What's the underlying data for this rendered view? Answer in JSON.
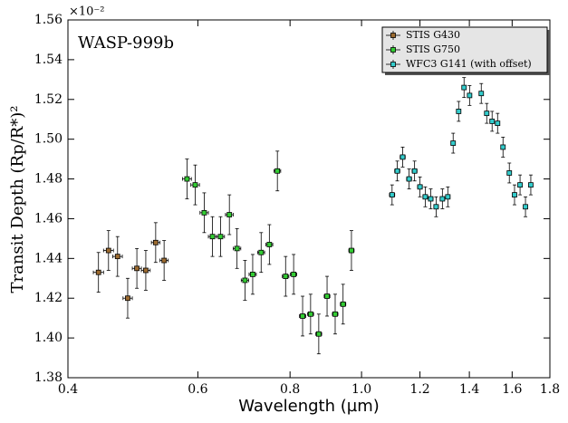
{
  "chart_data": {
    "type": "scatter",
    "title": "WASP-999b",
    "x_label": "Wavelength (µm)",
    "y_label": "Transit Depth (Rp/R*)²",
    "y_offset_label": "×10⁻²",
    "x_scale": "log",
    "xlim": [
      0.4,
      1.8
    ],
    "xticks": [
      0.4,
      0.6,
      0.8,
      {
        "value": 1,
        "label": "1.0"
      },
      1.2,
      1.4,
      1.6,
      1.8
    ],
    "ylim": [
      1.38,
      1.56
    ],
    "yticks": [
      1.38,
      {
        "value": 1.4,
        "label": "1.40"
      },
      1.42,
      1.44,
      1.46,
      1.48,
      {
        "value": 1.5,
        "label": "1.50"
      },
      1.52,
      1.54,
      1.56
    ],
    "grid": false,
    "legend": "upper right",
    "series": [
      {
        "name": "STIS G430",
        "color": "#9c6b30",
        "xerr": 0.007,
        "yerr": 0.01,
        "x": [
          0.44,
          0.454,
          0.467,
          0.482,
          0.496,
          0.51,
          0.526,
          0.54
        ],
        "values": [
          1.433,
          1.444,
          1.441,
          1.42,
          1.435,
          1.434,
          1.448,
          1.439
        ]
      },
      {
        "name": "STIS G750",
        "color": "#33cc33",
        "xerr": 0.008,
        "yerr": 0.01,
        "x": [
          0.58,
          0.595,
          0.612,
          0.628,
          0.644,
          0.662,
          0.678,
          0.695,
          0.712,
          0.731,
          0.75,
          0.769,
          0.789,
          0.809,
          0.832,
          0.853,
          0.875,
          0.898,
          0.921,
          0.944,
          0.969
        ],
        "values": [
          1.48,
          1.477,
          1.463,
          1.451,
          1.451,
          1.462,
          1.445,
          1.429,
          1.432,
          1.443,
          1.447,
          1.484,
          1.431,
          1.432,
          1.411,
          1.412,
          1.402,
          1.421,
          1.412,
          1.417,
          1.444
        ]
      },
      {
        "name": "WFC3 G141 (with offset)",
        "color": "#33cccc",
        "xerr": 0.009,
        "yerr": 0.005,
        "x": [
          1.1,
          1.118,
          1.137,
          1.16,
          1.18,
          1.2,
          1.22,
          1.241,
          1.262,
          1.287,
          1.309,
          1.331,
          1.354,
          1.377,
          1.401,
          1.453,
          1.478,
          1.503,
          1.529,
          1.555,
          1.586,
          1.612,
          1.64,
          1.668,
          1.696
        ],
        "values": [
          1.472,
          1.484,
          1.491,
          1.48,
          1.484,
          1.476,
          1.471,
          1.47,
          1.466,
          1.47,
          1.471,
          1.498,
          1.514,
          1.526,
          1.522,
          1.523,
          1.513,
          1.509,
          1.508,
          1.496,
          1.483,
          1.472,
          1.477,
          1.466,
          1.477
        ]
      }
    ]
  }
}
